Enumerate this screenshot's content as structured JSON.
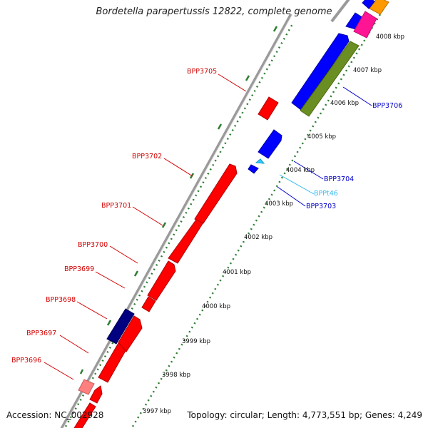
{
  "title": "Bordetella parapertussis 12822, complete genome",
  "accession": "Accession: NC_002928",
  "summary": "Topology: circular; Length: 4,773,551 bp; Genes: 4,249",
  "colors": {
    "backbone": "#808080",
    "tick_dots": "#2e7d32",
    "red_gene": "#ff0000",
    "blue_gene": "#0000ff",
    "navy_gene": "#000080",
    "pink_gene": "#ff7f7f",
    "olive_gene": "#6b8e23",
    "magenta_gene": "#ff1493",
    "orange_gene": "#ff9900",
    "trna_cyan": "#33ccff"
  },
  "kbp_ticks": [
    "3997 kbp",
    "3998 kbp",
    "3999 kbp",
    "4000 kbp",
    "4001 kbp",
    "4002 kbp",
    "4003 kbp",
    "4004 kbp",
    "4005 kbp",
    "4006 kbp",
    "4007 kbp",
    "4008 kbp"
  ],
  "gene_labels": [
    {
      "id": "BPP3696",
      "color": "#d40000"
    },
    {
      "id": "BPP3697",
      "color": "#d40000"
    },
    {
      "id": "BPP3698",
      "color": "#d40000"
    },
    {
      "id": "BPP3699",
      "color": "#d40000"
    },
    {
      "id": "BPP3700",
      "color": "#d40000"
    },
    {
      "id": "BPP3701",
      "color": "#d40000"
    },
    {
      "id": "BPP3702",
      "color": "#d40000"
    },
    {
      "id": "BPP3705",
      "color": "#d40000"
    },
    {
      "id": "BPP3703",
      "color": "#0000cc"
    },
    {
      "id": "BPPt46",
      "color": "#33bbee"
    },
    {
      "id": "BPP3704",
      "color": "#0000cc"
    },
    {
      "id": "BPP3706",
      "color": "#0000cc"
    }
  ]
}
